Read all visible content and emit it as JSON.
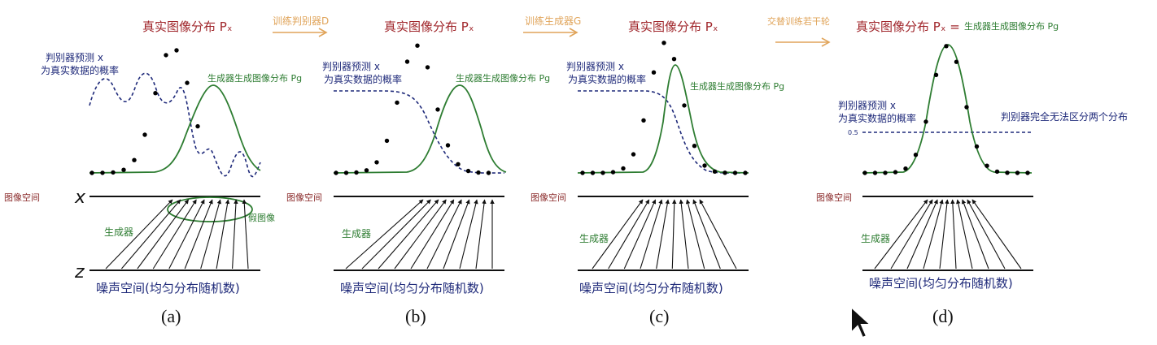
{
  "panels": [
    {
      "id": "a",
      "caption": "(a)",
      "real_label": "真实图像分布 Pₓ",
      "gen_label": "生成器生成图像分布 Pg",
      "disc_label_1": "判别器预测 x",
      "disc_label_2": "为真实数据的概率",
      "image_space": "图像空间",
      "generator": "生成器",
      "noise_space": "噪声空间(均匀分布随机数)",
      "fake_image": "假图像",
      "axis_x": "x",
      "axis_z": "z"
    },
    {
      "id": "b",
      "caption": "(b)",
      "real_label": "真实图像分布 Pₓ",
      "gen_label": "生成器生成图像分布 Pg",
      "disc_label_1": "判别器预测 x",
      "disc_label_2": "为真实数据的概率",
      "image_space": "图像空间",
      "generator": "生成器",
      "noise_space": "噪声空间(均匀分布随机数)"
    },
    {
      "id": "c",
      "caption": "(c)",
      "real_label": "真实图像分布 Pₓ",
      "gen_label": "生成器生成图像分布 Pg",
      "disc_label_1": "判别器预测 x",
      "disc_label_2": "为真实数据的概率",
      "image_space": "图像空间",
      "generator": "生成器",
      "noise_space": "噪声空间(均匀分布随机数)"
    },
    {
      "id": "d",
      "caption": "(d)",
      "real_label": "真实图像分布 Pₓ =",
      "gen_label": "生成器生成图像分布 Pg",
      "disc_label_1": "判别器预测 x",
      "disc_label_2": "为真实数据的概率",
      "half": "0.5",
      "disc_note": "判别器完全无法区分两个分布",
      "image_space": "图像空间",
      "generator": "生成器",
      "noise_space": "噪声空间(均匀分布随机数)"
    }
  ],
  "transitions": [
    "训练判别器D",
    "训练生成器G",
    "交替训练若干轮"
  ],
  "colors": {
    "real": "#a0262b",
    "generator": "#2e7d32",
    "discriminator": "#1f2a7a",
    "transition": "#e0a45a",
    "dots": "#000000"
  }
}
